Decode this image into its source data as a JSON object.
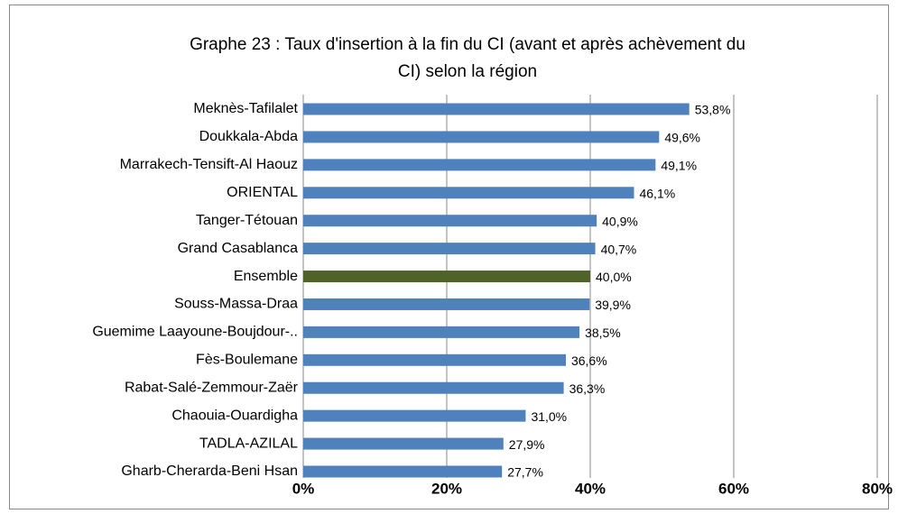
{
  "chart_data": {
    "type": "hbar",
    "title": [
      "Graphe 23 : Taux d'insertion à la fin du CI (avant et après achèvement du",
      "CI) selon la région"
    ],
    "categories": [
      "Meknès-Tafilalet",
      "Doukkala-Abda",
      "Marrakech-Tensift-Al Haouz",
      "ORIENTAL",
      "Tanger-Tétouan",
      "Grand Casablanca",
      "Ensemble",
      "Souss-Massa-Draa",
      "Guemime Laayoune-Boujdour-..",
      "Fès-Boulemane",
      "Rabat-Salé-Zemmour-Zaër",
      "Chaouia-Ouardigha",
      "TADLA-AZILAL",
      "Gharb-Cherarda-Beni Hsan"
    ],
    "values": [
      53.8,
      49.6,
      49.1,
      46.1,
      40.9,
      40.7,
      40.0,
      39.9,
      38.5,
      36.6,
      36.3,
      31.0,
      27.9,
      27.7
    ],
    "value_labels": [
      "53,8%",
      "49,6%",
      "49,1%",
      "46,1%",
      "40,9%",
      "40,7%",
      "40,0%",
      "39,9%",
      "38,5%",
      "36,6%",
      "36,3%",
      "31,0%",
      "27,9%",
      "27,7%"
    ],
    "colors": [
      "#4f81bd",
      "#4f81bd",
      "#4f81bd",
      "#4f81bd",
      "#4f81bd",
      "#4f81bd",
      "#4f6228",
      "#4f81bd",
      "#4f81bd",
      "#4f81bd",
      "#4f81bd",
      "#4f81bd",
      "#4f81bd",
      "#4f81bd"
    ],
    "xlim": [
      0,
      80
    ],
    "xticks": [
      {
        "value": 0,
        "label": "0%"
      },
      {
        "value": 20,
        "label": "20%"
      },
      {
        "value": 40,
        "label": "40%"
      },
      {
        "value": 60,
        "label": "60%"
      },
      {
        "value": 80,
        "label": "80%"
      }
    ],
    "grid": true
  }
}
